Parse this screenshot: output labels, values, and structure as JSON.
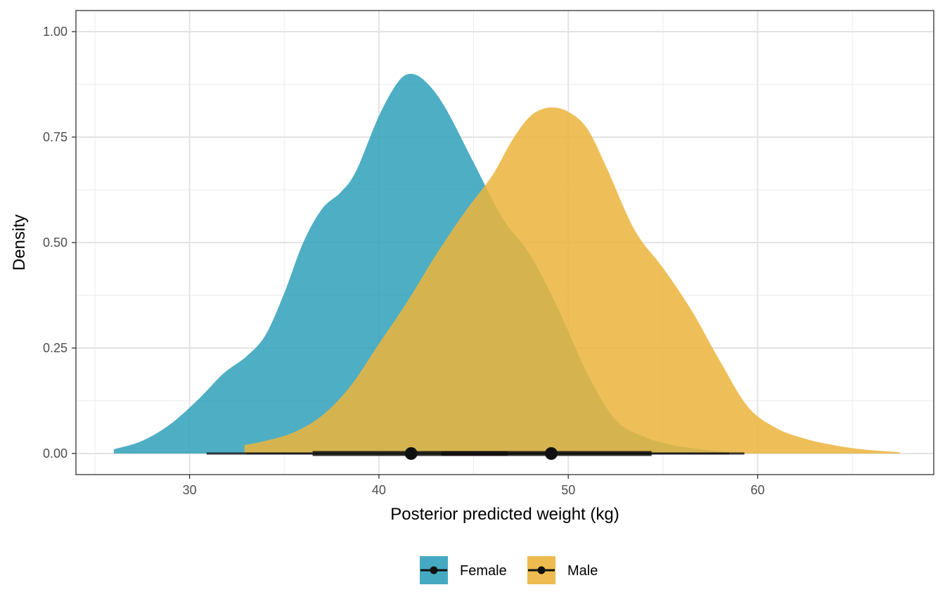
{
  "chart_data": {
    "type": "area",
    "xlabel": "Posterior predicted weight (kg)",
    "ylabel": "Density",
    "xlim": [
      24.0,
      69.3
    ],
    "ylim": [
      -0.05,
      1.05
    ],
    "x_ticks": [
      30,
      40,
      50,
      60
    ],
    "x_tick_labels": [
      "30",
      "40",
      "50",
      "60"
    ],
    "y_ticks": [
      0,
      0.25,
      0.5,
      0.75,
      1.0
    ],
    "y_tick_labels": [
      "0.00",
      "0.25",
      "0.50",
      "0.75",
      "1.00"
    ],
    "grid": true,
    "legend_position": "bottom",
    "series": [
      {
        "name": "Female",
        "color": "#31A1BA",
        "density": {
          "x": [
            26.0,
            27.5,
            29.0,
            30.5,
            31.8,
            33.0,
            34.0,
            35.0,
            36.0,
            37.0,
            38.0,
            38.8,
            40.0,
            41.0,
            41.7,
            42.5,
            43.5,
            45.0,
            46.5,
            48.0,
            49.5,
            51.0,
            52.5,
            54.0,
            55.5,
            57.0,
            58.5
          ],
          "y": [
            0.01,
            0.03,
            0.07,
            0.13,
            0.19,
            0.23,
            0.28,
            0.38,
            0.5,
            0.58,
            0.62,
            0.67,
            0.8,
            0.88,
            0.9,
            0.88,
            0.82,
            0.69,
            0.56,
            0.47,
            0.34,
            0.19,
            0.08,
            0.04,
            0.02,
            0.01,
            0.003
          ]
        },
        "median": 41.7,
        "interval_66": [
          36.5,
          46.8
        ],
        "interval_95": [
          30.9,
          58.5
        ]
      },
      {
        "name": "Male",
        "color": "#EBB43C",
        "density": {
          "x": [
            32.9,
            34.0,
            35.5,
            37.0,
            38.5,
            40.0,
            41.5,
            43.0,
            44.5,
            46.0,
            47.0,
            48.0,
            49.0,
            50.0,
            51.0,
            52.0,
            53.5,
            55.0,
            56.5,
            58.0,
            59.5,
            61.0,
            62.5,
            64.0,
            65.5,
            67.5
          ],
          "y": [
            0.02,
            0.03,
            0.05,
            0.09,
            0.16,
            0.26,
            0.36,
            0.47,
            0.57,
            0.66,
            0.74,
            0.8,
            0.82,
            0.81,
            0.77,
            0.68,
            0.53,
            0.44,
            0.34,
            0.22,
            0.11,
            0.06,
            0.035,
            0.02,
            0.01,
            0.003
          ]
        },
        "median": 49.1,
        "interval_66": [
          43.3,
          54.4
        ],
        "interval_95": [
          33.0,
          59.3
        ]
      }
    ]
  }
}
